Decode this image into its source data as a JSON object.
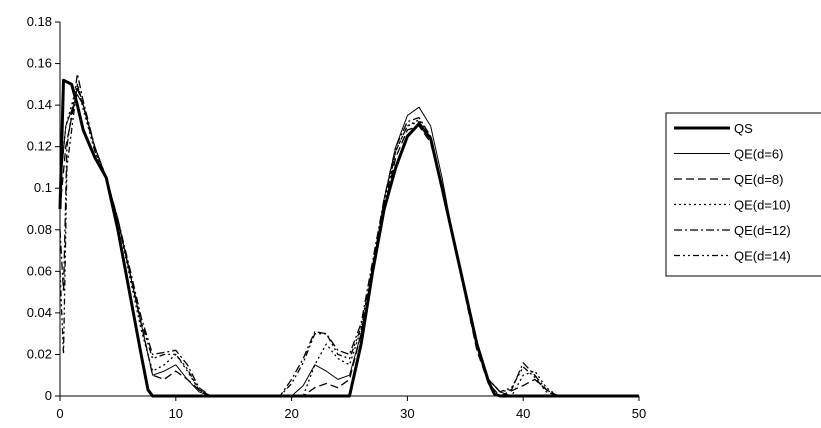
{
  "chart_data": {
    "type": "line",
    "title": "",
    "xlabel": "",
    "ylabel": "",
    "xlim": [
      0,
      50
    ],
    "ylim": [
      0,
      0.18
    ],
    "x_ticks": [
      "0",
      "10",
      "20",
      "30",
      "40",
      "50"
    ],
    "y_ticks": [
      "0",
      "0.02",
      "0.04",
      "0.06",
      "0.08",
      "0.1",
      "0.12",
      "0.14",
      "0.16",
      "0.18"
    ],
    "grid": false,
    "legend_position": "right",
    "series": [
      {
        "name": "QS",
        "style": "solid-thick",
        "points": [
          [
            0,
            0.09
          ],
          [
            0.3,
            0.152
          ],
          [
            1,
            0.15
          ],
          [
            1.5,
            0.14
          ],
          [
            2,
            0.128
          ],
          [
            3,
            0.115
          ],
          [
            4,
            0.105
          ],
          [
            5,
            0.08
          ],
          [
            6,
            0.05
          ],
          [
            7,
            0.02
          ],
          [
            7.6,
            0.003
          ],
          [
            8,
            0
          ],
          [
            25,
            0
          ],
          [
            26,
            0.025
          ],
          [
            27,
            0.06
          ],
          [
            28,
            0.09
          ],
          [
            29,
            0.11
          ],
          [
            30,
            0.125
          ],
          [
            31,
            0.131
          ],
          [
            32,
            0.124
          ],
          [
            33,
            0.1
          ],
          [
            34,
            0.075
          ],
          [
            35,
            0.05
          ],
          [
            36,
            0.025
          ],
          [
            37,
            0.007
          ],
          [
            37.5,
            0.001
          ],
          [
            38,
            0
          ],
          [
            50,
            0
          ]
        ]
      },
      {
        "name": "QE(d=6)",
        "style": "solid-thin",
        "points": [
          [
            0,
            0.1
          ],
          [
            0.5,
            0.13
          ],
          [
            1.5,
            0.145
          ],
          [
            2,
            0.14
          ],
          [
            3,
            0.12
          ],
          [
            4,
            0.105
          ],
          [
            5,
            0.085
          ],
          [
            6,
            0.06
          ],
          [
            7,
            0.035
          ],
          [
            8,
            0.01
          ],
          [
            9,
            0.012
          ],
          [
            10,
            0.015
          ],
          [
            11,
            0.008
          ],
          [
            12,
            0.002
          ],
          [
            13,
            0
          ],
          [
            20,
            0
          ],
          [
            21,
            0.005
          ],
          [
            22,
            0.015
          ],
          [
            23,
            0.012
          ],
          [
            24,
            0.008
          ],
          [
            25,
            0.01
          ],
          [
            26,
            0.03
          ],
          [
            27,
            0.06
          ],
          [
            28,
            0.095
          ],
          [
            29,
            0.12
          ],
          [
            30,
            0.135
          ],
          [
            31,
            0.139
          ],
          [
            32,
            0.13
          ],
          [
            33,
            0.105
          ],
          [
            34,
            0.075
          ],
          [
            35,
            0.05
          ],
          [
            36,
            0.025
          ],
          [
            37,
            0.008
          ],
          [
            38,
            0.002
          ],
          [
            39,
            0
          ],
          [
            50,
            0
          ]
        ]
      },
      {
        "name": "QE(d=8)",
        "style": "dashed-long",
        "points": [
          [
            0,
            0.09
          ],
          [
            0.5,
            0.12
          ],
          [
            1.5,
            0.148
          ],
          [
            2,
            0.14
          ],
          [
            3,
            0.12
          ],
          [
            4,
            0.105
          ],
          [
            5,
            0.085
          ],
          [
            6,
            0.06
          ],
          [
            7,
            0.035
          ],
          [
            8,
            0.01
          ],
          [
            9,
            0.008
          ],
          [
            10,
            0.012
          ],
          [
            11,
            0.008
          ],
          [
            12,
            0.003
          ],
          [
            13,
            0
          ],
          [
            21,
            0
          ],
          [
            22,
            0.004
          ],
          [
            23,
            0.006
          ],
          [
            24,
            0.004
          ],
          [
            25,
            0.008
          ],
          [
            26,
            0.03
          ],
          [
            27,
            0.06
          ],
          [
            28,
            0.09
          ],
          [
            29,
            0.115
          ],
          [
            30,
            0.128
          ],
          [
            31,
            0.13
          ],
          [
            32,
            0.122
          ],
          [
            33,
            0.1
          ],
          [
            34,
            0.075
          ],
          [
            35,
            0.048
          ],
          [
            36,
            0.022
          ],
          [
            37,
            0.006
          ],
          [
            38,
            0
          ],
          [
            40,
            0.005
          ],
          [
            41,
            0.008
          ],
          [
            42,
            0.003
          ],
          [
            43,
            0
          ],
          [
            50,
            0
          ]
        ]
      },
      {
        "name": "QE(d=10)",
        "style": "dotted",
        "points": [
          [
            0,
            0.1
          ],
          [
            0.5,
            0.13
          ],
          [
            1.5,
            0.15
          ],
          [
            2,
            0.138
          ],
          [
            3,
            0.118
          ],
          [
            4,
            0.105
          ],
          [
            5,
            0.085
          ],
          [
            6,
            0.058
          ],
          [
            7,
            0.032
          ],
          [
            8,
            0.012
          ],
          [
            9,
            0.015
          ],
          [
            10,
            0.02
          ],
          [
            11,
            0.012
          ],
          [
            12,
            0.003
          ],
          [
            13,
            0
          ],
          [
            21,
            0
          ],
          [
            22,
            0.015
          ],
          [
            23,
            0.025
          ],
          [
            24,
            0.018
          ],
          [
            25,
            0.015
          ],
          [
            26,
            0.032
          ],
          [
            27,
            0.062
          ],
          [
            28,
            0.092
          ],
          [
            29,
            0.118
          ],
          [
            30,
            0.13
          ],
          [
            31,
            0.133
          ],
          [
            32,
            0.124
          ],
          [
            33,
            0.1
          ],
          [
            34,
            0.075
          ],
          [
            35,
            0.05
          ],
          [
            36,
            0.024
          ],
          [
            37,
            0.008
          ],
          [
            38,
            0.002
          ],
          [
            39,
            0
          ],
          [
            40,
            0.01
          ],
          [
            41,
            0.012
          ],
          [
            42,
            0.004
          ],
          [
            43,
            0
          ],
          [
            50,
            0
          ]
        ]
      },
      {
        "name": "QE(d=12)",
        "style": "dash-dot",
        "points": [
          [
            0,
            0.08
          ],
          [
            0.3,
            0.05
          ],
          [
            0.6,
            0.12
          ],
          [
            1.5,
            0.155
          ],
          [
            2,
            0.142
          ],
          [
            3,
            0.12
          ],
          [
            4,
            0.105
          ],
          [
            5,
            0.085
          ],
          [
            6,
            0.062
          ],
          [
            7,
            0.038
          ],
          [
            8,
            0.02
          ],
          [
            9,
            0.021
          ],
          [
            10,
            0.022
          ],
          [
            11,
            0.015
          ],
          [
            12,
            0.004
          ],
          [
            13,
            0
          ],
          [
            19,
            0
          ],
          [
            20,
            0.008
          ],
          [
            21,
            0.018
          ],
          [
            22,
            0.031
          ],
          [
            23,
            0.03
          ],
          [
            24,
            0.022
          ],
          [
            25,
            0.02
          ],
          [
            26,
            0.035
          ],
          [
            27,
            0.065
          ],
          [
            28,
            0.095
          ],
          [
            29,
            0.12
          ],
          [
            30,
            0.132
          ],
          [
            31,
            0.134
          ],
          [
            32,
            0.125
          ],
          [
            33,
            0.1
          ],
          [
            34,
            0.075
          ],
          [
            35,
            0.05
          ],
          [
            36,
            0.025
          ],
          [
            37,
            0.008
          ],
          [
            38,
            0.002
          ],
          [
            39,
            0.003
          ],
          [
            40,
            0.016
          ],
          [
            41,
            0.01
          ],
          [
            42,
            0.003
          ],
          [
            43,
            0
          ],
          [
            50,
            0
          ]
        ]
      },
      {
        "name": "QE(d=14)",
        "style": "dash-dot-dot",
        "points": [
          [
            0,
            0.06
          ],
          [
            0.3,
            0.02
          ],
          [
            0.6,
            0.11
          ],
          [
            1.5,
            0.15
          ],
          [
            2,
            0.14
          ],
          [
            3,
            0.118
          ],
          [
            4,
            0.104
          ],
          [
            5,
            0.084
          ],
          [
            6,
            0.06
          ],
          [
            7,
            0.036
          ],
          [
            8,
            0.018
          ],
          [
            9,
            0.02
          ],
          [
            10,
            0.02
          ],
          [
            11,
            0.013
          ],
          [
            12,
            0.003
          ],
          [
            13,
            0
          ],
          [
            19,
            0
          ],
          [
            20,
            0.006
          ],
          [
            21,
            0.016
          ],
          [
            22,
            0.03
          ],
          [
            23,
            0.03
          ],
          [
            24,
            0.02
          ],
          [
            25,
            0.018
          ],
          [
            26,
            0.033
          ],
          [
            27,
            0.063
          ],
          [
            28,
            0.093
          ],
          [
            29,
            0.118
          ],
          [
            30,
            0.13
          ],
          [
            31,
            0.132
          ],
          [
            32,
            0.124
          ],
          [
            33,
            0.1
          ],
          [
            34,
            0.074
          ],
          [
            35,
            0.049
          ],
          [
            36,
            0.024
          ],
          [
            37,
            0.008
          ],
          [
            38,
            0.002
          ],
          [
            39,
            0.004
          ],
          [
            40,
            0.014
          ],
          [
            41,
            0.009
          ],
          [
            42,
            0.002
          ],
          [
            43,
            0
          ],
          [
            50,
            0
          ]
        ]
      }
    ]
  }
}
